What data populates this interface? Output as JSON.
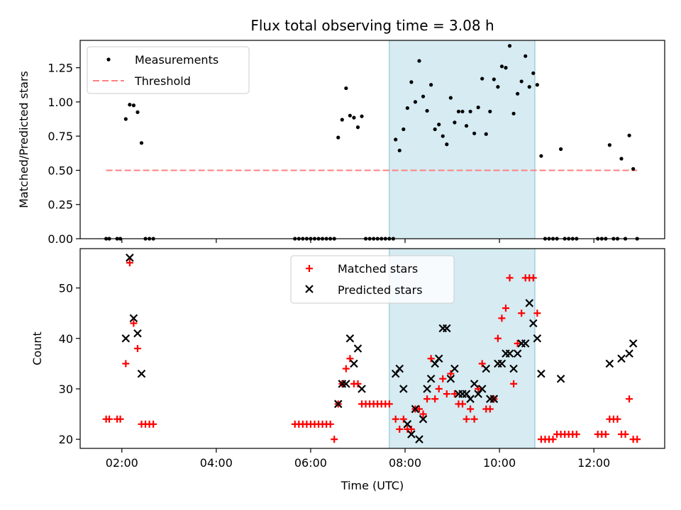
{
  "chart_data": [
    {
      "type": "scatter",
      "title": "Flux total observing time = 3.08 h",
      "xlabel": "",
      "ylabel": "Matched/Predicted stars",
      "ylim": [
        0,
        1.45
      ],
      "yticks": [
        "0.00",
        "0.25",
        "0.50",
        "0.75",
        "1.00",
        "1.25"
      ],
      "ytick_values": [
        0,
        0.25,
        0.5,
        0.75,
        1.0,
        1.25
      ],
      "shaded_interval": [
        "07:40",
        "10:45"
      ],
      "threshold": 0.5,
      "threshold_range": [
        "01:40",
        "12:55"
      ],
      "legend": [
        {
          "label": "Measurements",
          "marker": "dot",
          "color": "#000000"
        },
        {
          "label": "Threshold",
          "marker": "dashed-line",
          "color": "#ff8080"
        }
      ],
      "series": [
        {
          "name": "Measurements",
          "points": [
            [
              "01:40",
              0
            ],
            [
              "01:44",
              0
            ],
            [
              "01:54",
              0
            ],
            [
              "01:58",
              0
            ],
            [
              "02:05",
              0.875
            ],
            [
              "02:10",
              0.98
            ],
            [
              "02:15",
              0.975
            ],
            [
              "02:20",
              0.925
            ],
            [
              "02:25",
              0.7
            ],
            [
              "02:30",
              0
            ],
            [
              "02:35",
              0
            ],
            [
              "02:40",
              0
            ],
            [
              "05:40",
              0
            ],
            [
              "05:45",
              0
            ],
            [
              "05:50",
              0
            ],
            [
              "05:55",
              0
            ],
            [
              "06:00",
              0
            ],
            [
              "06:05",
              0
            ],
            [
              "06:10",
              0
            ],
            [
              "06:15",
              0
            ],
            [
              "06:20",
              0
            ],
            [
              "06:25",
              0
            ],
            [
              "06:30",
              0
            ],
            [
              "06:35",
              0.74
            ],
            [
              "06:40",
              0.87
            ],
            [
              "06:45",
              1.1
            ],
            [
              "06:50",
              0.9
            ],
            [
              "06:55",
              0.885
            ],
            [
              "07:00",
              0.815
            ],
            [
              "07:05",
              0.895
            ],
            [
              "07:10",
              0
            ],
            [
              "07:15",
              0
            ],
            [
              "07:20",
              0
            ],
            [
              "07:25",
              0
            ],
            [
              "07:30",
              0
            ],
            [
              "07:35",
              0
            ],
            [
              "07:40",
              0
            ],
            [
              "07:45",
              0
            ],
            [
              "07:48",
              0.725
            ],
            [
              "07:53",
              0.645
            ],
            [
              "07:58",
              0.8
            ],
            [
              "08:03",
              0.955
            ],
            [
              "08:08",
              1.145
            ],
            [
              "08:13",
              1.0
            ],
            [
              "08:18",
              1.3
            ],
            [
              "08:23",
              1.04
            ],
            [
              "08:28",
              0.935
            ],
            [
              "08:33",
              1.125
            ],
            [
              "08:38",
              0.8
            ],
            [
              "08:43",
              0.835
            ],
            [
              "08:48",
              0.75
            ],
            [
              "08:53",
              0.69
            ],
            [
              "08:58",
              1.03
            ],
            [
              "09:03",
              0.85
            ],
            [
              "09:08",
              0.93
            ],
            [
              "09:13",
              0.93
            ],
            [
              "09:18",
              0.825
            ],
            [
              "09:23",
              0.93
            ],
            [
              "09:28",
              0.77
            ],
            [
              "09:33",
              0.96
            ],
            [
              "09:38",
              1.17
            ],
            [
              "09:43",
              0.765
            ],
            [
              "09:48",
              0.93
            ],
            [
              "09:53",
              1.165
            ],
            [
              "09:58",
              1.11
            ],
            [
              "10:03",
              1.26
            ],
            [
              "10:08",
              1.25
            ],
            [
              "10:13",
              1.41
            ],
            [
              "10:18",
              0.915
            ],
            [
              "10:23",
              1.06
            ],
            [
              "10:28",
              1.15
            ],
            [
              "10:33",
              1.335
            ],
            [
              "10:38",
              1.11
            ],
            [
              "10:43",
              1.21
            ],
            [
              "10:48",
              1.125
            ],
            [
              "10:53",
              0.605
            ],
            [
              "10:58",
              0
            ],
            [
              "11:03",
              0
            ],
            [
              "11:08",
              0
            ],
            [
              "11:13",
              0
            ],
            [
              "11:18",
              0.655
            ],
            [
              "11:23",
              0
            ],
            [
              "11:28",
              0
            ],
            [
              "11:33",
              0
            ],
            [
              "11:38",
              0
            ],
            [
              "12:05",
              0
            ],
            [
              "12:10",
              0
            ],
            [
              "12:15",
              0
            ],
            [
              "12:20",
              0.685
            ],
            [
              "12:25",
              0
            ],
            [
              "12:30",
              0
            ],
            [
              "12:35",
              0.585
            ],
            [
              "12:40",
              0
            ],
            [
              "12:45",
              0.755
            ],
            [
              "12:50",
              0.51
            ],
            [
              "12:55",
              0
            ]
          ]
        }
      ]
    },
    {
      "type": "scatter",
      "xlabel": "Time (UTC)",
      "ylabel": "Count",
      "ylim": [
        18.2,
        57.8
      ],
      "yticks": [
        "20",
        "30",
        "40",
        "50"
      ],
      "ytick_values": [
        20,
        30,
        40,
        50
      ],
      "xlim": [
        "01:07",
        "13:30"
      ],
      "xticks": [
        "02:00",
        "04:00",
        "06:00",
        "08:00",
        "10:00",
        "12:00"
      ],
      "shaded_interval": [
        "07:40",
        "10:45"
      ],
      "legend": [
        {
          "label": "Matched stars",
          "marker": "plus",
          "color": "#ff0000"
        },
        {
          "label": "Predicted stars",
          "marker": "x",
          "color": "#000000"
        }
      ],
      "series": [
        {
          "name": "Matched stars",
          "points": [
            [
              "01:40",
              24
            ],
            [
              "01:44",
              24
            ],
            [
              "01:54",
              24
            ],
            [
              "01:58",
              24
            ],
            [
              "02:05",
              35
            ],
            [
              "02:10",
              55
            ],
            [
              "02:15",
              43
            ],
            [
              "02:20",
              38
            ],
            [
              "02:25",
              23
            ],
            [
              "02:30",
              23
            ],
            [
              "02:35",
              23
            ],
            [
              "02:40",
              23
            ],
            [
              "05:40",
              23
            ],
            [
              "05:45",
              23
            ],
            [
              "05:50",
              23
            ],
            [
              "05:55",
              23
            ],
            [
              "06:00",
              23
            ],
            [
              "06:05",
              23
            ],
            [
              "06:10",
              23
            ],
            [
              "06:15",
              23
            ],
            [
              "06:20",
              23
            ],
            [
              "06:25",
              23
            ],
            [
              "06:30",
              20
            ],
            [
              "06:35",
              27
            ],
            [
              "06:40",
              31
            ],
            [
              "06:45",
              34
            ],
            [
              "06:50",
              36
            ],
            [
              "06:55",
              31
            ],
            [
              "07:00",
              31
            ],
            [
              "07:05",
              27
            ],
            [
              "07:10",
              27
            ],
            [
              "07:15",
              27
            ],
            [
              "07:20",
              27
            ],
            [
              "07:25",
              27
            ],
            [
              "07:30",
              27
            ],
            [
              "07:35",
              27
            ],
            [
              "07:40",
              27
            ],
            [
              "07:48",
              24
            ],
            [
              "07:53",
              22
            ],
            [
              "07:58",
              24
            ],
            [
              "08:03",
              22
            ],
            [
              "08:08",
              22
            ],
            [
              "08:13",
              26
            ],
            [
              "08:18",
              26
            ],
            [
              "08:23",
              25
            ],
            [
              "08:28",
              28
            ],
            [
              "08:33",
              36
            ],
            [
              "08:38",
              28
            ],
            [
              "08:43",
              30
            ],
            [
              "08:48",
              32
            ],
            [
              "08:53",
              29
            ],
            [
              "08:58",
              33
            ],
            [
              "09:03",
              29
            ],
            [
              "09:08",
              27
            ],
            [
              "09:13",
              27
            ],
            [
              "09:18",
              24
            ],
            [
              "09:23",
              26
            ],
            [
              "09:28",
              24
            ],
            [
              "09:33",
              30
            ],
            [
              "09:38",
              35
            ],
            [
              "09:43",
              26
            ],
            [
              "09:48",
              26
            ],
            [
              "09:53",
              28
            ],
            [
              "09:58",
              40
            ],
            [
              "10:03",
              44
            ],
            [
              "10:08",
              46
            ],
            [
              "10:13",
              52
            ],
            [
              "10:18",
              31
            ],
            [
              "10:23",
              39
            ],
            [
              "10:28",
              45
            ],
            [
              "10:33",
              52
            ],
            [
              "10:38",
              52
            ],
            [
              "10:43",
              52
            ],
            [
              "10:48",
              45
            ],
            [
              "10:53",
              20
            ],
            [
              "10:58",
              20
            ],
            [
              "11:03",
              20
            ],
            [
              "11:08",
              20
            ],
            [
              "11:13",
              21
            ],
            [
              "11:18",
              21
            ],
            [
              "11:23",
              21
            ],
            [
              "11:28",
              21
            ],
            [
              "11:33",
              21
            ],
            [
              "11:38",
              21
            ],
            [
              "12:05",
              21
            ],
            [
              "12:10",
              21
            ],
            [
              "12:15",
              21
            ],
            [
              "12:20",
              24
            ],
            [
              "12:25",
              24
            ],
            [
              "12:30",
              24
            ],
            [
              "12:35",
              21
            ],
            [
              "12:40",
              21
            ],
            [
              "12:45",
              28
            ],
            [
              "12:50",
              20
            ],
            [
              "12:55",
              20
            ]
          ]
        },
        {
          "name": "Predicted stars",
          "points": [
            [
              "02:05",
              40
            ],
            [
              "02:10",
              56
            ],
            [
              "02:15",
              44
            ],
            [
              "02:20",
              41
            ],
            [
              "02:25",
              33
            ],
            [
              "06:35",
              27
            ],
            [
              "06:40",
              31
            ],
            [
              "06:45",
              31
            ],
            [
              "06:50",
              40
            ],
            [
              "06:55",
              35
            ],
            [
              "07:00",
              38
            ],
            [
              "07:05",
              30
            ],
            [
              "07:48",
              33
            ],
            [
              "07:53",
              34
            ],
            [
              "07:58",
              30
            ],
            [
              "08:03",
              23
            ],
            [
              "08:08",
              21
            ],
            [
              "08:13",
              26
            ],
            [
              "08:18",
              20
            ],
            [
              "08:23",
              24
            ],
            [
              "08:28",
              30
            ],
            [
              "08:33",
              32
            ],
            [
              "08:38",
              35
            ],
            [
              "08:43",
              36
            ],
            [
              "08:48",
              42
            ],
            [
              "08:53",
              42
            ],
            [
              "08:58",
              32
            ],
            [
              "09:03",
              34
            ],
            [
              "09:08",
              29
            ],
            [
              "09:13",
              29
            ],
            [
              "09:18",
              29
            ],
            [
              "09:23",
              28
            ],
            [
              "09:28",
              31
            ],
            [
              "09:33",
              29
            ],
            [
              "09:38",
              30
            ],
            [
              "09:43",
              34
            ],
            [
              "09:48",
              28
            ],
            [
              "09:53",
              28
            ],
            [
              "09:58",
              35
            ],
            [
              "10:03",
              35
            ],
            [
              "10:08",
              37
            ],
            [
              "10:13",
              37
            ],
            [
              "10:18",
              34
            ],
            [
              "10:23",
              37
            ],
            [
              "10:28",
              39
            ],
            [
              "10:33",
              39
            ],
            [
              "10:38",
              47
            ],
            [
              "10:43",
              43
            ],
            [
              "10:48",
              40
            ],
            [
              "10:53",
              33
            ],
            [
              "11:18",
              32
            ],
            [
              "12:20",
              35
            ],
            [
              "12:35",
              36
            ],
            [
              "12:45",
              37
            ],
            [
              "12:50",
              39
            ]
          ]
        }
      ]
    }
  ]
}
